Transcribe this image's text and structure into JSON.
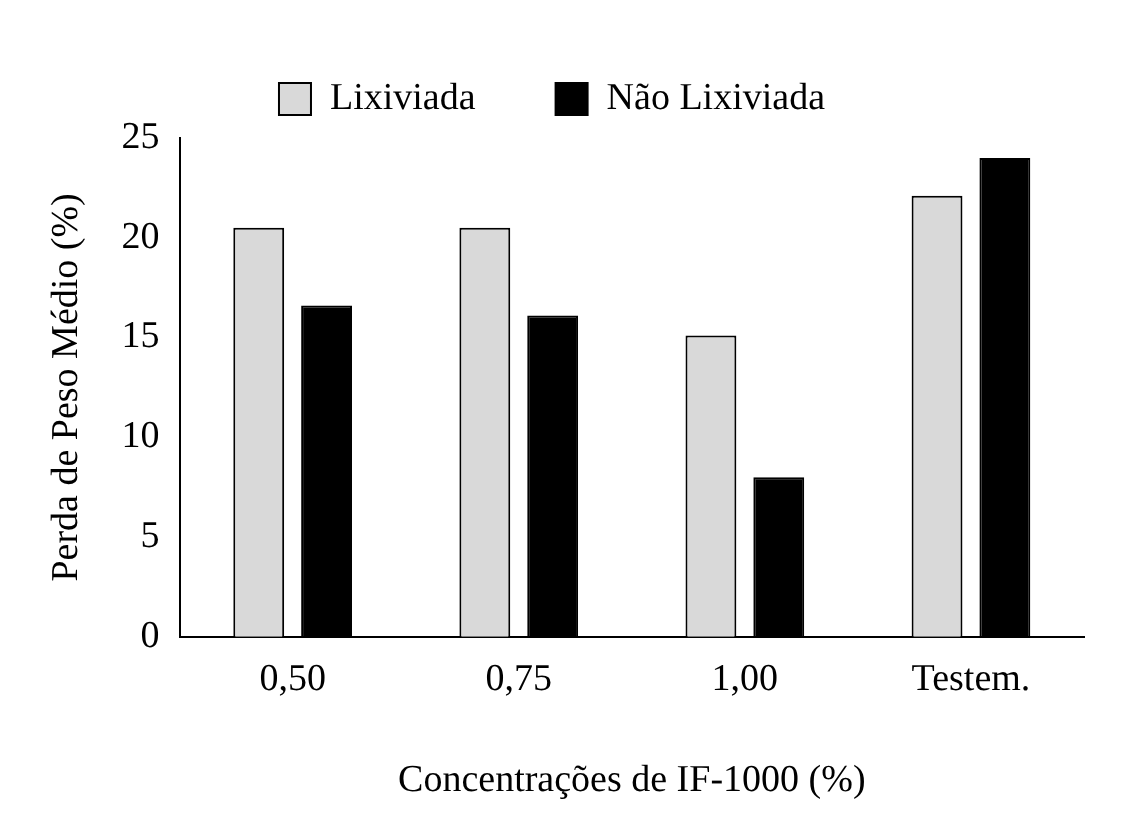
{
  "chart_data": {
    "type": "bar",
    "xlabel": "Concentrações de IF-1000 (%)",
    "ylabel": "Perda de Peso Médio (%)",
    "categories": [
      "0,50",
      "0,75",
      "1,00",
      "Testem."
    ],
    "series": [
      {
        "name": "Lixiviada",
        "color": "#d9d9d9",
        "values": [
          20.5,
          20.5,
          15.1,
          22.1
        ]
      },
      {
        "name": "Não Lixiviada",
        "color": "#000000",
        "values": [
          16.6,
          16.1,
          8.0,
          24.0
        ]
      }
    ],
    "ylim": [
      0,
      25
    ],
    "yticks": [
      0,
      5,
      10,
      15,
      20,
      25
    ],
    "grid": false,
    "legend": "top"
  }
}
